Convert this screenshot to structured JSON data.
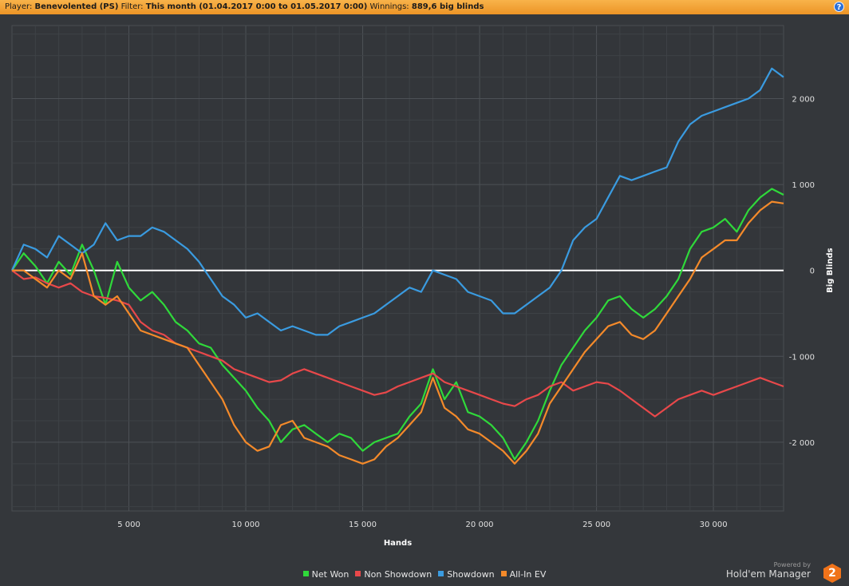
{
  "header": {
    "player_label": "Player:",
    "player_value": "Benevolented (PS)",
    "filter_label": "Filter:",
    "filter_value": "This month (01.04.2017 0:00 to 01.05.2017 0:00)",
    "winnings_label": "Winnings:",
    "winnings_value": "889,6 big blinds",
    "help_icon": "?"
  },
  "footer": {
    "powered_by": "Powered by",
    "brand_name": "Hold'em Manager",
    "brand_logo": "2"
  },
  "colors": {
    "background": "#34373b",
    "grid": "#4a4e52",
    "zero_line": "#ffffff",
    "header": "#f2a13a"
  },
  "chart_data": {
    "type": "line",
    "xlabel": "Hands",
    "ylabel": "Big Blinds",
    "xlim": [
      0,
      33000
    ],
    "ylim": [
      -2800,
      2850
    ],
    "xticks": [
      5000,
      10000,
      15000,
      20000,
      25000,
      30000
    ],
    "xtick_labels": [
      "5 000",
      "10 000",
      "15 000",
      "20 000",
      "25 000",
      "30 000"
    ],
    "yticks": [
      2000,
      1000,
      0,
      -1000,
      -2000
    ],
    "ytick_labels": [
      "2 000",
      "1 000",
      "0",
      "-1 000",
      "-2 000"
    ],
    "legend_position": "bottom",
    "grid": true,
    "x": [
      0,
      500,
      1000,
      1500,
      2000,
      2500,
      3000,
      3500,
      4000,
      4500,
      5000,
      5500,
      6000,
      6500,
      7000,
      7500,
      8000,
      8500,
      9000,
      9500,
      10000,
      10500,
      11000,
      11500,
      12000,
      12500,
      13000,
      13500,
      14000,
      14500,
      15000,
      15500,
      16000,
      16500,
      17000,
      17500,
      18000,
      18500,
      19000,
      19500,
      20000,
      20500,
      21000,
      21500,
      22000,
      22500,
      23000,
      23500,
      24000,
      24500,
      25000,
      25500,
      26000,
      26500,
      27000,
      27500,
      28000,
      28500,
      29000,
      29500,
      30000,
      30500,
      31000,
      31500,
      32000,
      32500,
      33000
    ],
    "series": [
      {
        "name": "Net Won",
        "color": "#2fd93a",
        "values": [
          0,
          200,
          50,
          -150,
          100,
          -50,
          300,
          0,
          -400,
          100,
          -200,
          -350,
          -250,
          -400,
          -600,
          -700,
          -850,
          -900,
          -1100,
          -1250,
          -1400,
          -1600,
          -1750,
          -2000,
          -1850,
          -1800,
          -1900,
          -2000,
          -1900,
          -1950,
          -2100,
          -2000,
          -1950,
          -1900,
          -1700,
          -1550,
          -1150,
          -1500,
          -1300,
          -1650,
          -1700,
          -1800,
          -1950,
          -2200,
          -2000,
          -1750,
          -1400,
          -1100,
          -900,
          -700,
          -550,
          -350,
          -300,
          -450,
          -550,
          -450,
          -300,
          -100,
          250,
          450,
          500,
          600,
          450,
          700,
          850,
          950,
          880
        ]
      },
      {
        "name": "Non Showdown",
        "color": "#e8484a",
        "values": [
          0,
          -100,
          -80,
          -150,
          -200,
          -150,
          -250,
          -300,
          -320,
          -350,
          -400,
          -600,
          -700,
          -750,
          -850,
          -900,
          -950,
          -1000,
          -1050,
          -1150,
          -1200,
          -1250,
          -1300,
          -1280,
          -1200,
          -1150,
          -1200,
          -1250,
          -1300,
          -1350,
          -1400,
          -1450,
          -1420,
          -1350,
          -1300,
          -1250,
          -1200,
          -1300,
          -1350,
          -1400,
          -1450,
          -1500,
          -1550,
          -1580,
          -1500,
          -1450,
          -1350,
          -1300,
          -1400,
          -1350,
          -1300,
          -1320,
          -1400,
          -1500,
          -1600,
          -1700,
          -1600,
          -1500,
          -1450,
          -1400,
          -1450,
          -1400,
          -1350,
          -1300,
          -1250,
          -1300,
          -1350
        ]
      },
      {
        "name": "Showdown",
        "color": "#3a9be0",
        "values": [
          0,
          300,
          250,
          150,
          400,
          300,
          200,
          300,
          550,
          350,
          400,
          400,
          500,
          450,
          350,
          250,
          100,
          -100,
          -300,
          -400,
          -550,
          -500,
          -600,
          -700,
          -650,
          -700,
          -750,
          -750,
          -650,
          -600,
          -550,
          -500,
          -400,
          -300,
          -200,
          -250,
          0,
          -50,
          -100,
          -250,
          -300,
          -350,
          -500,
          -500,
          -400,
          -300,
          -200,
          0,
          350,
          500,
          600,
          850,
          1100,
          1050,
          1100,
          1150,
          1200,
          1500,
          1700,
          1800,
          1850,
          1900,
          1950,
          2000,
          2100,
          2350,
          2250
        ]
      },
      {
        "name": "All-In EV",
        "color": "#f48a2a",
        "values": [
          0,
          0,
          -100,
          -200,
          0,
          -100,
          200,
          -300,
          -400,
          -300,
          -500,
          -700,
          -750,
          -800,
          -850,
          -900,
          -1100,
          -1300,
          -1500,
          -1800,
          -2000,
          -2100,
          -2050,
          -1800,
          -1750,
          -1950,
          -2000,
          -2050,
          -2150,
          -2200,
          -2250,
          -2200,
          -2050,
          -1950,
          -1800,
          -1650,
          -1250,
          -1600,
          -1700,
          -1850,
          -1900,
          -2000,
          -2100,
          -2250,
          -2100,
          -1900,
          -1550,
          -1350,
          -1150,
          -950,
          -800,
          -650,
          -600,
          -750,
          -800,
          -700,
          -500,
          -300,
          -100,
          150,
          250,
          350,
          350,
          550,
          700,
          800,
          780
        ]
      }
    ]
  }
}
